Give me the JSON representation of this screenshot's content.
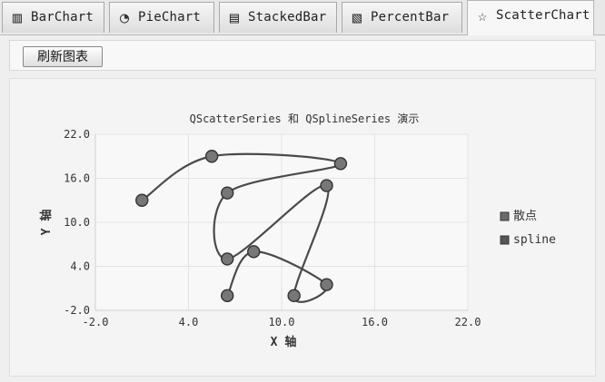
{
  "tabs": [
    {
      "label": "BarChart",
      "icon": "bar-chart-icon"
    },
    {
      "label": "PieChart",
      "icon": "pie-chart-icon"
    },
    {
      "label": "StackedBar",
      "icon": "stacked-bar-icon"
    },
    {
      "label": "PercentBar",
      "icon": "percent-bar-icon"
    },
    {
      "label": "ScatterChart",
      "icon": "scatter-chart-icon",
      "active": true
    }
  ],
  "toolbar": {
    "refresh_label": "刷新图表"
  },
  "chart_data": {
    "type": "scatter",
    "title": "QScatterSeries 和 QSplineSeries 演示",
    "xlabel": "X 轴",
    "ylabel": "Y 轴",
    "xlim": [
      -2.0,
      22.0
    ],
    "ylim": [
      -2.0,
      22.0
    ],
    "x_ticks": [
      "-2.0",
      "4.0",
      "10.0",
      "16.0",
      "22.0"
    ],
    "y_ticks": [
      "22.0",
      "16.0",
      "10.0",
      "4.0",
      "-2.0"
    ],
    "grid": true,
    "legend_position": "right",
    "series": [
      {
        "name": "散点",
        "color": "#4f4f4f",
        "points": [
          {
            "x": 1.0,
            "y": 13.0
          },
          {
            "x": 5.5,
            "y": 19.0
          },
          {
            "x": 13.8,
            "y": 18.0
          },
          {
            "x": 6.5,
            "y": 14.0
          },
          {
            "x": 6.5,
            "y": 5.0
          },
          {
            "x": 12.9,
            "y": 15.0
          },
          {
            "x": 10.8,
            "y": 0.0
          },
          {
            "x": 12.9,
            "y": 1.5
          },
          {
            "x": 8.2,
            "y": 6.0
          },
          {
            "x": 6.5,
            "y": 0.0
          }
        ]
      },
      {
        "name": "spline",
        "color": "#4a4a4a",
        "points": [
          {
            "x": 1.0,
            "y": 13.0
          },
          {
            "x": 5.5,
            "y": 19.0
          },
          {
            "x": 13.8,
            "y": 18.0
          },
          {
            "x": 6.5,
            "y": 14.0
          },
          {
            "x": 6.5,
            "y": 5.0
          },
          {
            "x": 12.9,
            "y": 15.0
          },
          {
            "x": 10.8,
            "y": 0.0
          },
          {
            "x": 12.9,
            "y": 1.5
          },
          {
            "x": 8.2,
            "y": 6.0
          },
          {
            "x": 6.5,
            "y": 0.0
          }
        ]
      }
    ]
  }
}
